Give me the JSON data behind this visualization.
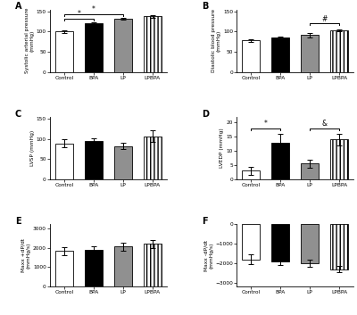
{
  "categories": [
    "Control",
    "BPA",
    "LP",
    "LPBPA"
  ],
  "bar_colors": [
    "white",
    "black",
    "#909090",
    "white"
  ],
  "bar_edgecolor": "black",
  "hatch_patterns": [
    "",
    "",
    "",
    "||||"
  ],
  "panels": [
    {
      "key": "A",
      "values": [
        100,
        120,
        132,
        138
      ],
      "errors": [
        3,
        4,
        3,
        3
      ],
      "ylabel": "Systolic arterial pressure\n(mmHg)",
      "ylim": [
        0,
        155
      ],
      "yticks": [
        0,
        50,
        100,
        150
      ],
      "sigs": [
        {
          "i1": 0,
          "i2": 1,
          "sym": "*",
          "y": 132
        },
        {
          "i1": 0,
          "i2": 2,
          "sym": "*",
          "y": 143
        }
      ]
    },
    {
      "key": "B",
      "values": [
        78,
        85,
        91,
        103
      ],
      "errors": [
        3,
        3,
        5,
        3
      ],
      "ylabel": "Diastolic blood pressure\n(mmHg)",
      "ylim": [
        0,
        155
      ],
      "yticks": [
        0,
        50,
        100,
        150
      ],
      "sigs": [
        {
          "i1": 2,
          "i2": 3,
          "sym": "#",
          "y": 120
        }
      ]
    },
    {
      "key": "C",
      "values": [
        89,
        94,
        82,
        107
      ],
      "errors": [
        10,
        7,
        8,
        15
      ],
      "ylabel": "LVSP (mmHg)",
      "ylim": [
        0,
        155
      ],
      "yticks": [
        0,
        50,
        100,
        150
      ],
      "sigs": []
    },
    {
      "key": "D",
      "values": [
        3,
        13,
        5.5,
        14
      ],
      "errors": [
        1.5,
        3,
        1.5,
        2
      ],
      "ylabel": "LVEDP (mmHg)",
      "ylim": [
        0,
        22
      ],
      "yticks": [
        0,
        5,
        10,
        15,
        20
      ],
      "sigs": [
        {
          "i1": 0,
          "i2": 1,
          "sym": "*",
          "y": 18
        },
        {
          "i1": 2,
          "i2": 3,
          "sym": "&",
          "y": 18
        }
      ]
    },
    {
      "key": "E",
      "values": [
        1820,
        1890,
        2050,
        2200
      ],
      "errors": [
        220,
        200,
        200,
        200
      ],
      "ylabel": "Maxx +dP/dt\n(mmHg/s)",
      "ylim": [
        0,
        3200
      ],
      "yticks": [
        0,
        1000,
        2000,
        3000
      ],
      "sigs": []
    },
    {
      "key": "F",
      "values": [
        -1800,
        -1900,
        -2000,
        -2300
      ],
      "errors": [
        250,
        200,
        200,
        150
      ],
      "ylabel": "Maxx -dP/dt\n(mmHg/s)",
      "ylim": [
        -3200,
        0
      ],
      "yticks": [
        -3000,
        -2000,
        -1000,
        0
      ],
      "sigs": [],
      "negative": true
    }
  ]
}
